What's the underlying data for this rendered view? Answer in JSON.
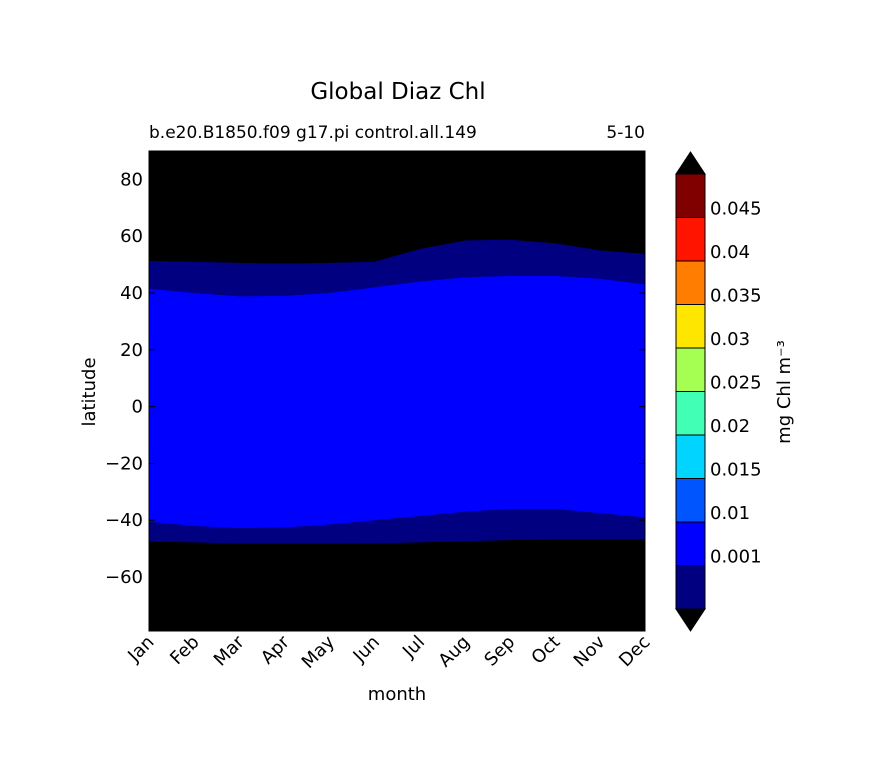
{
  "chart_data": {
    "type": "heatmap",
    "title": "Global Diaz Chl",
    "subtitle_left": "b.e20.B1850.f09 g17.pi control.all.149",
    "subtitle_right": "5-10",
    "xlabel": "month",
    "ylabel": "latitude",
    "x_tick_labels": [
      "Jan",
      "Feb",
      "Mar",
      "Apr",
      "May",
      "Jun",
      "Jul",
      "Aug",
      "Sep",
      "Oct",
      "Nov",
      "Dec"
    ],
    "ylim": [
      -79,
      90
    ],
    "y_ticks": [
      -60,
      -40,
      -20,
      0,
      20,
      40,
      60,
      80
    ],
    "y_tick_labels": [
      "−60",
      "−40",
      "−20",
      "0",
      "20",
      "40",
      "60",
      "80"
    ],
    "colorbar": {
      "label": "mg Chl m⁻³",
      "extend": "both",
      "levels": [
        0.001,
        0.01,
        0.015,
        0.02,
        0.025,
        0.03,
        0.035,
        0.04,
        0.045
      ],
      "tick_labels": [
        "0.001",
        "0.01",
        "0.015",
        "0.02",
        "0.025",
        "0.03",
        "0.035",
        "0.04",
        "0.045"
      ],
      "under_color": "#000000",
      "over_color": "#000000",
      "colors": [
        "#000080",
        "#0000ff",
        "#0055ff",
        "#00d4ff",
        "#41ffb4",
        "#a4ff52",
        "#ffe600",
        "#ff7d00",
        "#ff1400",
        "#800000"
      ]
    },
    "bands": {
      "south_outer": [
        -47.5,
        -47.8,
        -48.3,
        -48.3,
        -48.3,
        -48.2,
        -47.8,
        -47.4,
        -47.0,
        -46.8,
        -46.7,
        -46.7
      ],
      "south_inner": [
        -40.5,
        -42.0,
        -42.8,
        -42.5,
        -41.5,
        -40.0,
        -38.5,
        -37.0,
        -36.0,
        -36.0,
        -37.5,
        -39.0
      ],
      "north_inner": [
        41.5,
        40.0,
        38.8,
        39.0,
        40.0,
        42.0,
        44.0,
        45.5,
        46.0,
        46.0,
        45.0,
        43.0
      ],
      "north_outer": [
        51.3,
        51.0,
        50.6,
        50.4,
        50.6,
        51.0,
        55.5,
        58.5,
        58.8,
        57.5,
        55.0,
        53.8
      ]
    }
  }
}
